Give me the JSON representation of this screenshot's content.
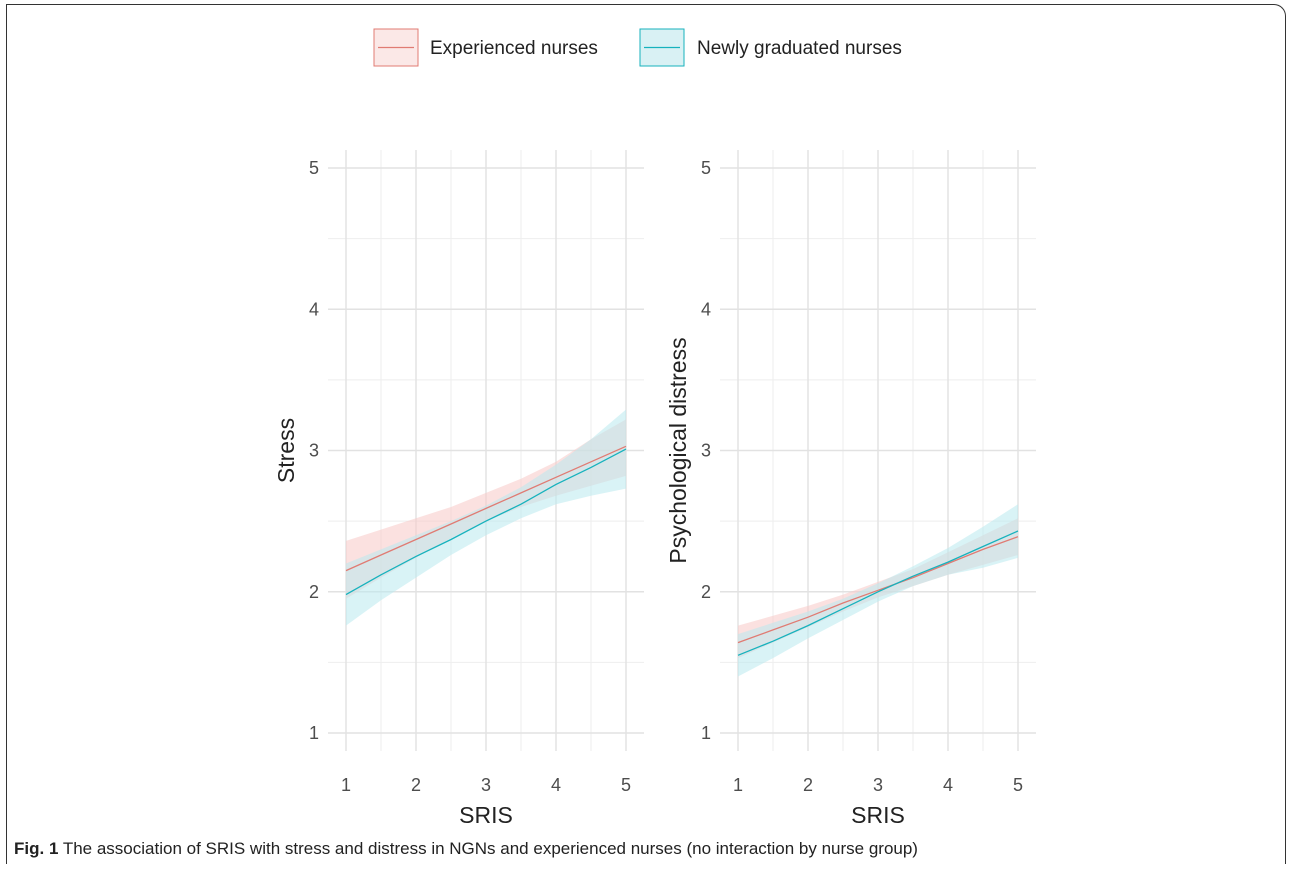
{
  "legend": {
    "items": [
      {
        "label": "Experienced nurses",
        "color": "#e07b73",
        "fill": "#f8c9c6"
      },
      {
        "label": "Newly graduated nurses",
        "color": "#17b2bd",
        "fill": "#b9eaee"
      }
    ]
  },
  "caption": {
    "label": "Fig. 1",
    "text": "The association of SRIS with stress and distress in NGNs and experienced nurses (no interaction by nurse group)"
  },
  "chart_data": [
    {
      "type": "line",
      "xlabel": "SRIS",
      "ylabel": "Stress",
      "xlim": [
        1,
        5
      ],
      "ylim": [
        1,
        5
      ],
      "xticks": [
        "1",
        "2",
        "3",
        "4",
        "5"
      ],
      "yticks": [
        "1",
        "2",
        "3",
        "4",
        "5"
      ],
      "grid": true,
      "x": [
        1,
        1.5,
        2,
        2.5,
        3,
        3.5,
        4,
        4.5,
        5
      ],
      "series": [
        {
          "name": "Experienced nurses",
          "values": [
            2.15,
            2.26,
            2.37,
            2.48,
            2.59,
            2.7,
            2.81,
            2.92,
            3.03
          ],
          "lower": [
            1.95,
            2.1,
            2.24,
            2.38,
            2.5,
            2.6,
            2.68,
            2.75,
            2.82
          ],
          "upper": [
            2.36,
            2.44,
            2.52,
            2.6,
            2.7,
            2.8,
            2.92,
            3.08,
            3.22
          ]
        },
        {
          "name": "Newly graduated nurses",
          "values": [
            1.98,
            2.12,
            2.25,
            2.37,
            2.5,
            2.62,
            2.76,
            2.88,
            3.01
          ],
          "lower": [
            1.76,
            1.94,
            2.1,
            2.26,
            2.4,
            2.52,
            2.62,
            2.68,
            2.73
          ],
          "upper": [
            2.2,
            2.3,
            2.4,
            2.5,
            2.61,
            2.74,
            2.9,
            3.08,
            3.29
          ]
        }
      ]
    },
    {
      "type": "line",
      "xlabel": "SRIS",
      "ylabel": "Psychological distress",
      "xlim": [
        1,
        5
      ],
      "ylim": [
        1,
        5
      ],
      "xticks": [
        "1",
        "2",
        "3",
        "4",
        "5"
      ],
      "yticks": [
        "1",
        "2",
        "3",
        "4",
        "5"
      ],
      "grid": true,
      "x": [
        1,
        1.5,
        2,
        2.5,
        3,
        3.5,
        4,
        4.5,
        5
      ],
      "series": [
        {
          "name": "Experienced nurses",
          "values": [
            1.64,
            1.73,
            1.82,
            1.92,
            2.01,
            2.1,
            2.2,
            2.3,
            2.39
          ],
          "lower": [
            1.53,
            1.64,
            1.75,
            1.86,
            1.96,
            2.04,
            2.12,
            2.19,
            2.26
          ],
          "upper": [
            1.76,
            1.83,
            1.9,
            1.98,
            2.07,
            2.16,
            2.28,
            2.4,
            2.52
          ]
        },
        {
          "name": "Newly graduated nurses",
          "values": [
            1.55,
            1.65,
            1.76,
            1.88,
            2.0,
            2.11,
            2.21,
            2.32,
            2.43
          ],
          "lower": [
            1.4,
            1.53,
            1.67,
            1.8,
            1.93,
            2.04,
            2.12,
            2.17,
            2.24
          ],
          "upper": [
            1.7,
            1.78,
            1.86,
            1.95,
            2.06,
            2.18,
            2.31,
            2.46,
            2.62
          ]
        }
      ]
    }
  ]
}
